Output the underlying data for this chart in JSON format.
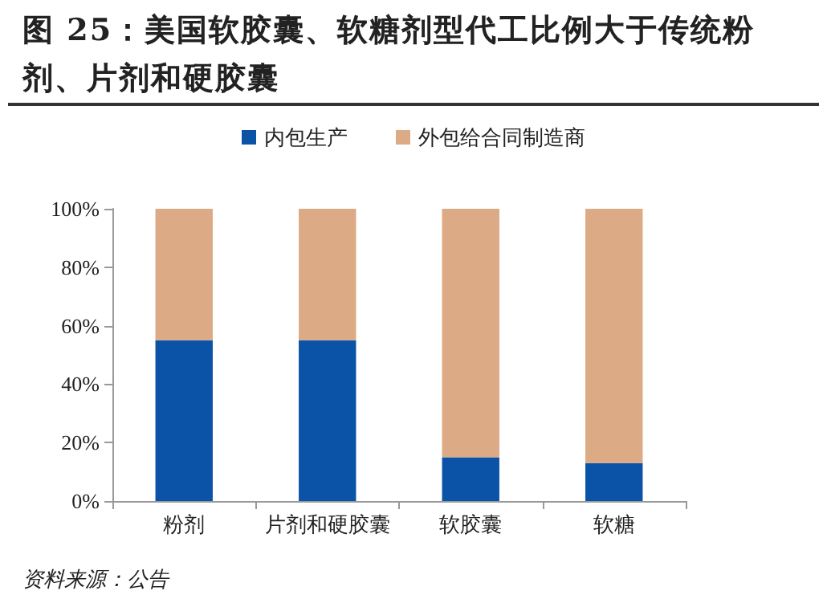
{
  "chart_data": {
    "type": "bar",
    "title": "图 25：美国软胶囊、软糖剂型代工比例大于传统粉剂、片剂和硬胶囊",
    "categories": [
      "粉剂",
      "片剂和硬胶囊",
      "软胶囊",
      "软糖"
    ],
    "series": [
      {
        "name": "内包生产",
        "color": "#0b53a7",
        "values": [
          55,
          55,
          15,
          13
        ]
      },
      {
        "name": "外包给合同制造商",
        "color": "#dcaa85",
        "values": [
          45,
          45,
          85,
          87
        ]
      }
    ],
    "stacked": true,
    "ylim": [
      0,
      100
    ],
    "yticks": [
      {
        "value": 0,
        "label": "0%"
      },
      {
        "value": 20,
        "label": "20%"
      },
      {
        "value": 40,
        "label": "40%"
      },
      {
        "value": 60,
        "label": "60%"
      },
      {
        "value": 80,
        "label": "80%"
      },
      {
        "value": 100,
        "label": "100%"
      }
    ],
    "grid": false,
    "legend": "top",
    "annotations": [
      "资料来源：公告"
    ]
  }
}
